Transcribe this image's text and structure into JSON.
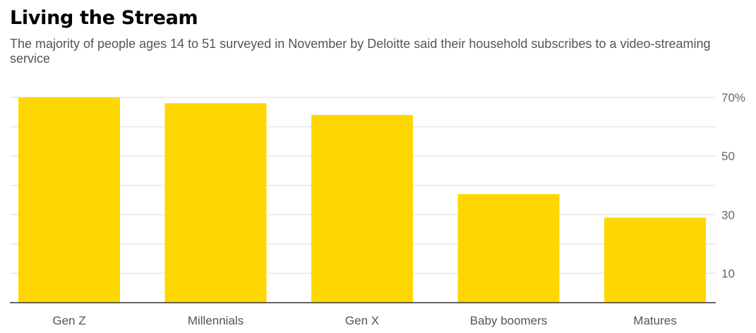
{
  "header": {
    "title": "Living the Stream",
    "subtitle": "The majority of people ages 14 to 51 surveyed in November by Deloitte said their household subscribes to a video-streaming service"
  },
  "chart_data": {
    "type": "bar",
    "categories": [
      "Gen Z",
      "Millennials",
      "Gen X",
      "Baby boomers",
      "Matures"
    ],
    "values": [
      70,
      68,
      64,
      37,
      29
    ],
    "ylim": [
      0,
      70
    ],
    "yticks": [
      10,
      30,
      50,
      70
    ],
    "ytick_labels": [
      "10",
      "30",
      "50",
      "70%"
    ],
    "grid": true,
    "bar_color": "#FFD700",
    "grid_color": "#e8e8e8",
    "axis_color": "#333333"
  }
}
